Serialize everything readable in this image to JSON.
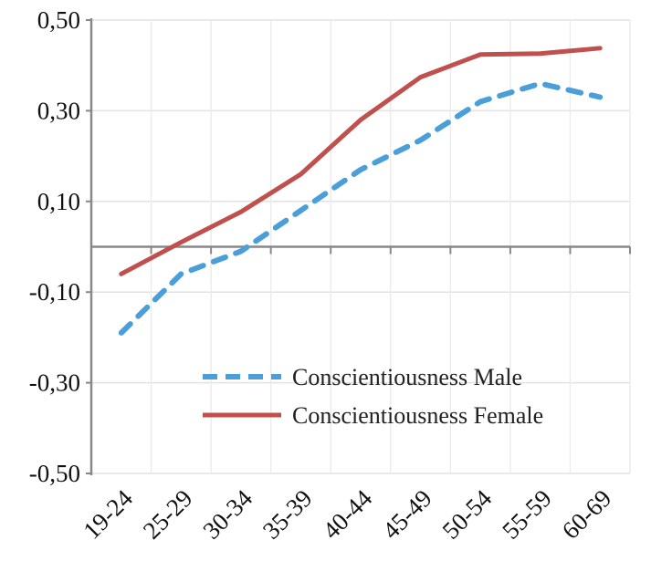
{
  "chart_data": {
    "type": "line",
    "title": "",
    "xlabel": "",
    "ylabel": "",
    "categories": [
      "19-24",
      "25-29",
      "30-34",
      "35-39",
      "40-44",
      "45-49",
      "50-54",
      "55-59",
      "60-69"
    ],
    "ylim": [
      -0.5,
      0.5
    ],
    "yticks": [
      0.5,
      0.3,
      0.1,
      -0.1,
      -0.3,
      -0.5
    ],
    "ytick_labels": [
      "0,50",
      "0,30",
      "0,10",
      "-0,10",
      "-0,30",
      "-0,50"
    ],
    "grid": true,
    "legend_position": "bottom-right",
    "series": [
      {
        "name": "Conscientiousness Male",
        "style": "dashed",
        "color": "#4a9fd8",
        "values": [
          -0.19,
          -0.06,
          -0.01,
          0.08,
          0.17,
          0.235,
          0.32,
          0.36,
          0.33
        ]
      },
      {
        "name": "Conscientiousness Female",
        "style": "solid",
        "color": "#c0504d",
        "values": [
          -0.06,
          0.01,
          0.077,
          0.16,
          0.28,
          0.374,
          0.424,
          0.426,
          0.438
        ]
      }
    ]
  }
}
